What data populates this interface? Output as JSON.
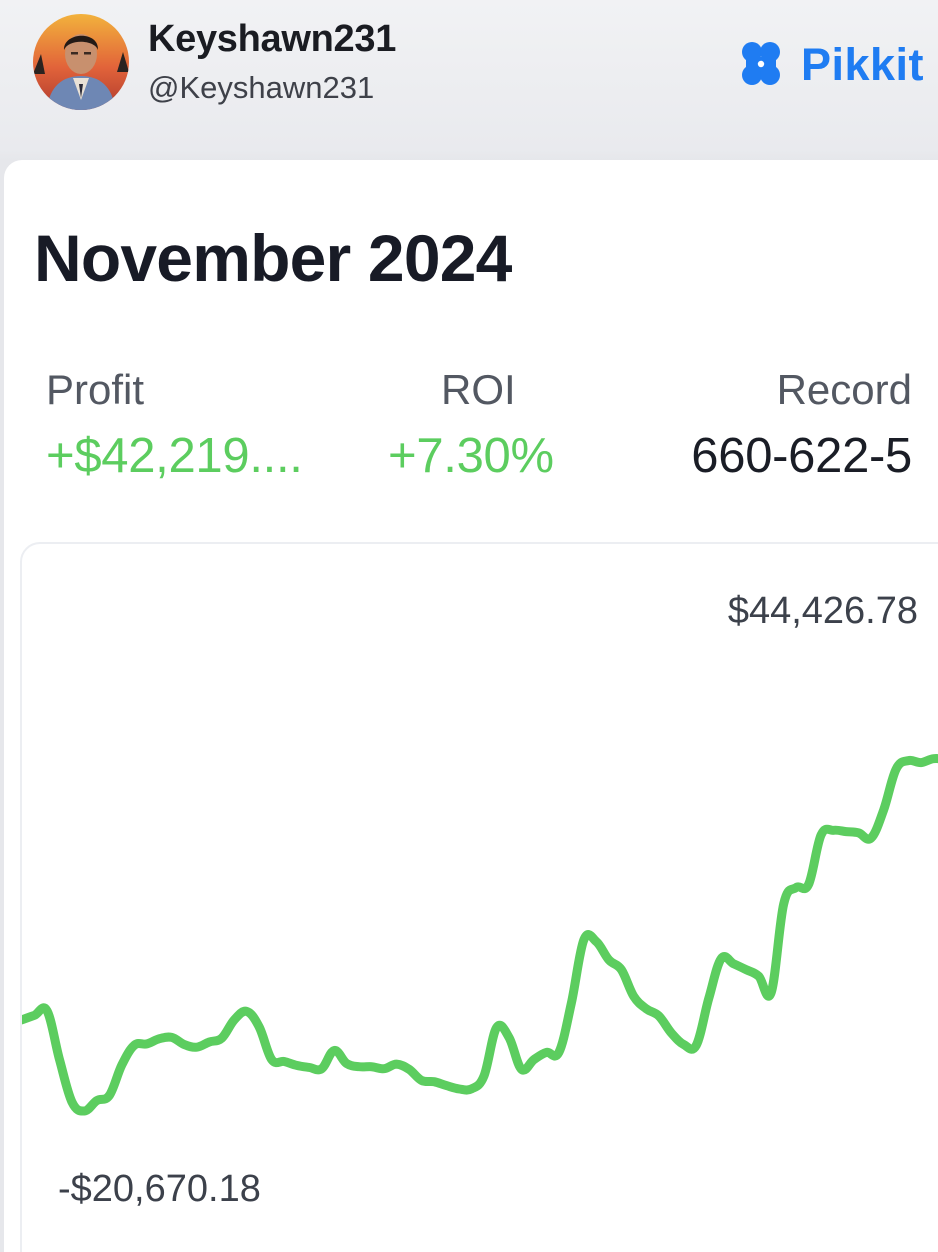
{
  "header": {
    "username": "Keyshawn231",
    "handle": "@Keyshawn231",
    "brand_name": "Pikkit",
    "brand_icon": "clover-icon",
    "brand_color": "#1f7cf2"
  },
  "summary": {
    "period": "November 2024",
    "profit_label": "Profit",
    "profit_value": "+$42,219....",
    "roi_label": "ROI",
    "roi_value": "+7.30%",
    "record_label": "Record",
    "record_value": "660-622-5",
    "positive_color": "#5ccd5f"
  },
  "chart_data": {
    "type": "line",
    "max_label": "$44,426.78",
    "min_label": "-$20,670.18",
    "ylim": [
      -20670.18,
      44426.78
    ],
    "series": [
      {
        "values": [
          -5600,
          -4900,
          -4200,
          -11700,
          -18200,
          -19600,
          -18000,
          -17200,
          -12500,
          -9500,
          -9300,
          -8500,
          -8300,
          -9400,
          -9800,
          -9000,
          -8400,
          -5600,
          -4300,
          -6700,
          -11700,
          -12000,
          -12600,
          -12900,
          -13100,
          -10300,
          -12300,
          -12800,
          -12800,
          -13100,
          -12400,
          -13200,
          -14900,
          -15100,
          -15700,
          -16200,
          -16200,
          -14200,
          -6800,
          -8300,
          -13200,
          -11700,
          -10600,
          -10600,
          -3000,
          6700,
          6400,
          3600,
          2100,
          -2000,
          -3900,
          -5000,
          -7600,
          -9400,
          -9500,
          -2300,
          3800,
          3000,
          2100,
          1100,
          -1400,
          12200,
          14700,
          15200,
          22800,
          23500,
          23300,
          23100,
          22300,
          26600,
          32900,
          34200,
          33900,
          34500,
          34400
        ]
      }
    ],
    "line_color": "#5ccd5f"
  }
}
